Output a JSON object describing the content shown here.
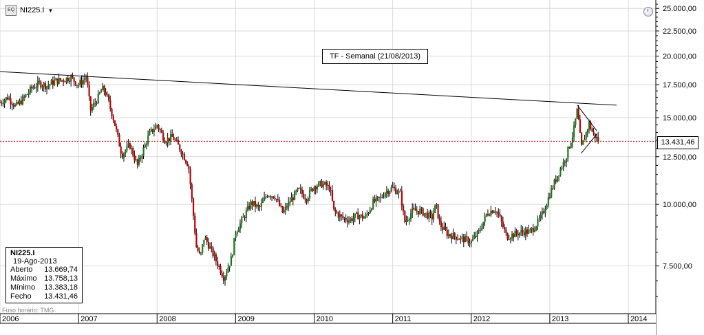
{
  "symbol": "NI225.I",
  "timeframe_note": "TF - Semanal (21/08/2013)",
  "info_panel": {
    "symbol": "NI225.I",
    "date": "19-Ago-2013",
    "rows": [
      {
        "label": "Aberto",
        "value": "13.669,74"
      },
      {
        "label": "Máximo",
        "value": "13.758,13"
      },
      {
        "label": "Mínimo",
        "value": "13.383,18"
      },
      {
        "label": "Fecho",
        "value": "13.431,46"
      }
    ]
  },
  "timezone_note": "Fuso horário: TMG",
  "last_price_label": "13.431,46",
  "icons": {
    "symbol": "chart-type-icon",
    "dropdown": "chevron-down-icon",
    "clock": "clock-icon"
  },
  "colors": {
    "up": "#1a7a1a",
    "down": "#c00000",
    "grid": "#d9d9d9",
    "trendline": "#000000",
    "price_line": "#c00000"
  },
  "chart_data": {
    "type": "candlestick",
    "period": "weekly",
    "scale": "log",
    "ylim": [
      6000,
      26000
    ],
    "y_ticks": [
      {
        "value": 25000,
        "label": "25.000,00"
      },
      {
        "value": 22500,
        "label": "22.500,00"
      },
      {
        "value": 20000,
        "label": "20.000,00"
      },
      {
        "value": 17500,
        "label": "17.500,00"
      },
      {
        "value": 15000,
        "label": "15.000,00"
      },
      {
        "value": 12500,
        "label": "12.500,00"
      },
      {
        "value": 10000,
        "label": "10.000,00"
      },
      {
        "value": 7500,
        "label": "7.500,00"
      }
    ],
    "xlim": [
      2006.0,
      2014.35
    ],
    "x_ticks": [
      {
        "value": 2006,
        "label": "2006"
      },
      {
        "value": 2007,
        "label": "2007"
      },
      {
        "value": 2008,
        "label": "2008"
      },
      {
        "value": 2009,
        "label": "2009"
      },
      {
        "value": 2010,
        "label": "2010"
      },
      {
        "value": 2011,
        "label": "2011"
      },
      {
        "value": 2012,
        "label": "2012"
      },
      {
        "value": 2013,
        "label": "2013"
      },
      {
        "value": 2014,
        "label": "2014"
      }
    ],
    "close_path": [
      [
        2006.0,
        16100
      ],
      [
        2006.1,
        16500
      ],
      [
        2006.2,
        15800
      ],
      [
        2006.3,
        16400
      ],
      [
        2006.4,
        17200
      ],
      [
        2006.5,
        17600
      ],
      [
        2006.6,
        17400
      ],
      [
        2006.7,
        17800
      ],
      [
        2006.8,
        17900
      ],
      [
        2006.9,
        18100
      ],
      [
        2007.0,
        17500
      ],
      [
        2007.1,
        18200
      ],
      [
        2007.15,
        15500
      ],
      [
        2007.25,
        16500
      ],
      [
        2007.3,
        17200
      ],
      [
        2007.35,
        16800
      ],
      [
        2007.45,
        14800
      ],
      [
        2007.55,
        12600
      ],
      [
        2007.65,
        13200
      ],
      [
        2007.75,
        12000
      ],
      [
        2007.9,
        13900
      ],
      [
        2008.0,
        14500
      ],
      [
        2008.1,
        13500
      ],
      [
        2008.2,
        13700
      ],
      [
        2008.3,
        12900
      ],
      [
        2008.4,
        12000
      ],
      [
        2008.5,
        8200
      ],
      [
        2008.55,
        7800
      ],
      [
        2008.6,
        8600
      ],
      [
        2008.7,
        8000
      ],
      [
        2008.8,
        7400
      ],
      [
        2008.85,
        7100
      ],
      [
        2008.95,
        7800
      ],
      [
        2009.0,
        8800
      ],
      [
        2009.1,
        9400
      ],
      [
        2009.2,
        10100
      ],
      [
        2009.3,
        9800
      ],
      [
        2009.4,
        10500
      ],
      [
        2009.5,
        10400
      ],
      [
        2009.6,
        9600
      ],
      [
        2009.7,
        10200
      ],
      [
        2009.8,
        10700
      ],
      [
        2009.9,
        10300
      ],
      [
        2010.0,
        10900
      ],
      [
        2010.1,
        11000
      ],
      [
        2010.2,
        10800
      ],
      [
        2010.25,
        9700
      ],
      [
        2010.35,
        9400
      ],
      [
        2010.45,
        9300
      ],
      [
        2010.55,
        9500
      ],
      [
        2010.65,
        9400
      ],
      [
        2010.75,
        10100
      ],
      [
        2010.85,
        10300
      ],
      [
        2010.9,
        10600
      ],
      [
        2011.0,
        10800
      ],
      [
        2011.1,
        10500
      ],
      [
        2011.15,
        9200
      ],
      [
        2011.25,
        9700
      ],
      [
        2011.35,
        9700
      ],
      [
        2011.5,
        9400
      ],
      [
        2011.55,
        10000
      ],
      [
        2011.6,
        9100
      ],
      [
        2011.7,
        8700
      ],
      [
        2011.8,
        8600
      ],
      [
        2011.9,
        8500
      ],
      [
        2012.0,
        8400
      ],
      [
        2012.1,
        8800
      ],
      [
        2012.2,
        9600
      ],
      [
        2012.3,
        9800
      ],
      [
        2012.35,
        9500
      ],
      [
        2012.45,
        8600
      ],
      [
        2012.55,
        8700
      ],
      [
        2012.65,
        8800
      ],
      [
        2012.75,
        8800
      ],
      [
        2012.85,
        9200
      ],
      [
        2012.9,
        9500
      ],
      [
        2013.0,
        10500
      ],
      [
        2013.1,
        11500
      ],
      [
        2013.2,
        12400
      ],
      [
        2013.3,
        14000
      ],
      [
        2013.35,
        15600
      ],
      [
        2013.4,
        13000
      ],
      [
        2013.45,
        13800
      ],
      [
        2013.5,
        14600
      ],
      [
        2013.55,
        13900
      ],
      [
        2013.6,
        13600
      ],
      [
        2013.62,
        13431
      ]
    ],
    "annotations": [
      {
        "type": "trendline",
        "from": [
          2006.0,
          18600
        ],
        "to": [
          2013.85,
          15900
        ]
      },
      {
        "type": "trendline",
        "from": [
          2013.35,
          15900
        ],
        "to": [
          2013.6,
          14100
        ]
      },
      {
        "type": "trendline",
        "from": [
          2013.4,
          12700
        ],
        "to": [
          2013.6,
          13900
        ]
      },
      {
        "type": "hline",
        "value": 13431.46
      }
    ]
  }
}
